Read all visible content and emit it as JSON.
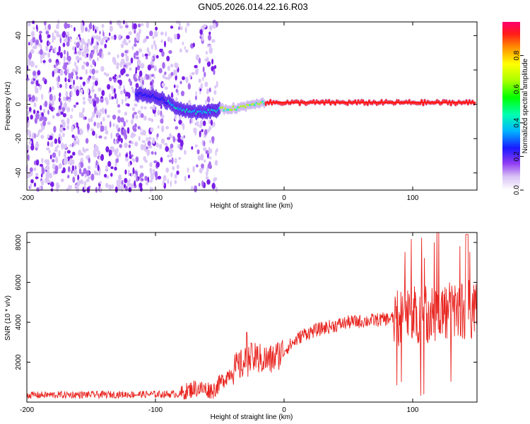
{
  "title": "GN05.2026.014.22.16.R03",
  "chart_data": [
    {
      "type": "heatmap",
      "xlabel": "Height of straight line (km)",
      "ylabel": "Frequency (Hz)",
      "xlim": [
        -200,
        150
      ],
      "ylim": [
        -50,
        48
      ],
      "xticks": [
        -200,
        -100,
        0,
        100
      ],
      "yticks": [
        -40,
        -20,
        0,
        20,
        40
      ],
      "colorbar": {
        "label": "Normalized spectral amplitude",
        "range": [
          0,
          1
        ],
        "ticks": [
          "0.0",
          "0.2",
          "0.4",
          "0.6",
          "0.8"
        ]
      },
      "description_ridge": [
        {
          "x": -110,
          "f": 6
        },
        {
          "x": -95,
          "f": 3
        },
        {
          "x": -80,
          "f": -3
        },
        {
          "x": -65,
          "f": -5
        },
        {
          "x": -50,
          "f": -3
        },
        {
          "x": -35,
          "f": -2
        },
        {
          "x": -20,
          "f": 1
        },
        {
          "x": 0,
          "f": 1
        },
        {
          "x": 150,
          "f": 1
        }
      ]
    },
    {
      "type": "line",
      "xlabel": "Height of straight line (km)",
      "ylabel": "SNR (10 * v/v)",
      "xlim": [
        -200,
        150
      ],
      "ylim": [
        0,
        8500
      ],
      "xticks": [
        -200,
        -100,
        0,
        100
      ],
      "yticks": [
        2000,
        4000,
        6000,
        8000
      ],
      "series": [
        {
          "name": "SNR",
          "color": "#e8231e",
          "envelope": [
            {
              "x": -200,
              "y": 350
            },
            {
              "x": -80,
              "y": 400
            },
            {
              "x": -70,
              "y": 700
            },
            {
              "x": -55,
              "y": 600
            },
            {
              "x": -40,
              "y": 1600
            },
            {
              "x": -25,
              "y": 2200
            },
            {
              "x": -10,
              "y": 2100
            },
            {
              "x": 0,
              "y": 2600
            },
            {
              "x": 15,
              "y": 3400
            },
            {
              "x": 30,
              "y": 3700
            },
            {
              "x": 50,
              "y": 4000
            },
            {
              "x": 70,
              "y": 4100
            },
            {
              "x": 85,
              "y": 4200
            },
            {
              "x": 100,
              "y": 4400
            },
            {
              "x": 120,
              "y": 4500
            },
            {
              "x": 150,
              "y": 4700
            }
          ]
        }
      ]
    }
  ]
}
